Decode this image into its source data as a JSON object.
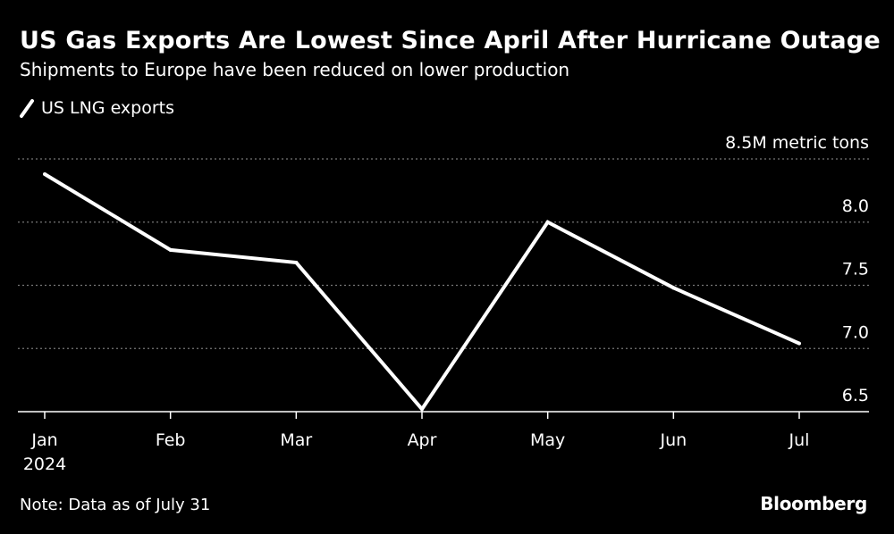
{
  "title": "US Gas Exports Are Lowest Since April After Hurricane Outage",
  "subtitle": "Shipments to Europe have been reduced on lower production",
  "note": "Note: Data as of July 31",
  "brand": "Bloomberg",
  "colors": {
    "background": "#000000",
    "line": "#ffffff",
    "grid": "#777777",
    "text": "#ffffff"
  },
  "chart_data": {
    "type": "line",
    "title": "US Gas Exports Are Lowest Since April After Hurricane Outage",
    "subtitle": "Shipments to Europe have been reduced on lower production",
    "categories": [
      "Jan",
      "Feb",
      "Mar",
      "Apr",
      "May",
      "Jun",
      "Jul"
    ],
    "year_label": "2024",
    "series": [
      {
        "name": "US LNG exports",
        "values": [
          8.38,
          7.78,
          7.68,
          6.52,
          8.0,
          7.48,
          7.04
        ]
      }
    ],
    "ylim": [
      6.5,
      8.5
    ],
    "yticks": [
      {
        "value": 8.5,
        "label": "8.5M metric tons"
      },
      {
        "value": 8.0,
        "label": "8.0"
      },
      {
        "value": 7.5,
        "label": "7.5"
      },
      {
        "value": 7.0,
        "label": "7.0"
      },
      {
        "value": 6.5,
        "label": "6.5"
      }
    ],
    "xlabel": "",
    "ylabel": "M metric tons",
    "grid": true,
    "legend_position": "top-left"
  }
}
